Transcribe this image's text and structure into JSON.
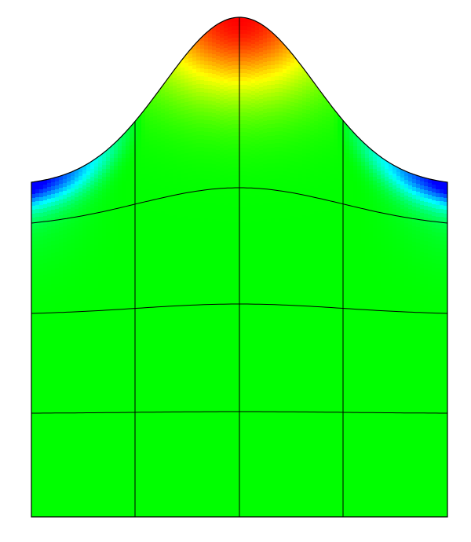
{
  "figure": {
    "kind": "deformed finite-element mesh with scalar color field",
    "mesh": {
      "columns": 4,
      "rows": 4
    },
    "colormap": [
      "#0000ff",
      "#00ffff",
      "#00ff00",
      "#ffff00",
      "#ff0000"
    ],
    "background": "#ffffff",
    "line_color": "#000000"
  }
}
